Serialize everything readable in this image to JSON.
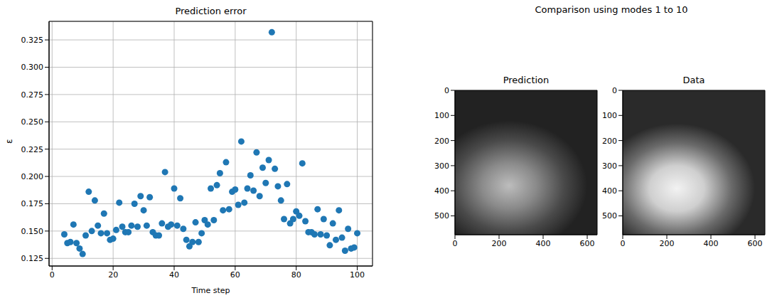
{
  "title": "Comparison using modes 1 to 10",
  "chart_data": [
    {
      "type": "scatter",
      "title": "Prediction error",
      "x_label": "Time step",
      "y_label": "ε",
      "color": "#1f77b4",
      "marker": "circle",
      "grid": true,
      "xlim": [
        -1,
        105
      ],
      "ylim": [
        0.118,
        0.342
      ],
      "xticks": [
        0,
        20,
        40,
        60,
        80,
        100
      ],
      "yticks": [
        0.125,
        {
          "value": 0.15,
          "label": "0.150"
        },
        0.175,
        {
          "value": 0.2,
          "label": "0.200"
        },
        0.225,
        {
          "value": 0.25,
          "label": "0.250"
        },
        0.275,
        {
          "value": 0.3,
          "label": "0.300"
        },
        0.325
      ],
      "x": [
        4,
        5,
        6,
        7,
        8,
        9,
        10,
        11,
        12,
        13,
        14,
        15,
        16,
        17,
        18,
        19,
        20,
        21,
        22,
        23,
        24,
        25,
        26,
        27,
        28,
        29,
        30,
        31,
        32,
        33,
        34,
        35,
        36,
        37,
        38,
        39,
        40,
        41,
        42,
        43,
        44,
        45,
        46,
        47,
        48,
        49,
        50,
        51,
        52,
        53,
        54,
        55,
        56,
        57,
        58,
        59,
        60,
        61,
        62,
        63,
        64,
        65,
        66,
        67,
        68,
        69,
        70,
        71,
        72,
        73,
        74,
        75,
        76,
        77,
        78,
        79,
        80,
        81,
        82,
        83,
        84,
        85,
        86,
        87,
        88,
        89,
        90,
        91,
        92,
        93,
        94,
        95,
        96,
        97,
        98,
        99,
        100
      ],
      "values": [
        0.147,
        0.139,
        0.14,
        0.156,
        0.139,
        0.134,
        0.129,
        0.146,
        0.186,
        0.15,
        0.178,
        0.155,
        0.148,
        0.166,
        0.148,
        0.142,
        0.143,
        0.151,
        0.176,
        0.154,
        0.149,
        0.149,
        0.155,
        0.175,
        0.154,
        0.182,
        0.169,
        0.155,
        0.181,
        0.149,
        0.146,
        0.146,
        0.157,
        0.204,
        0.154,
        0.156,
        0.189,
        0.155,
        0.18,
        0.152,
        0.142,
        0.136,
        0.14,
        0.158,
        0.14,
        0.148,
        0.16,
        0.156,
        0.189,
        0.16,
        0.192,
        0.203,
        0.169,
        0.213,
        0.17,
        0.186,
        0.188,
        0.174,
        0.232,
        0.176,
        0.189,
        0.201,
        0.187,
        0.222,
        0.182,
        0.208,
        0.194,
        0.215,
        0.332,
        0.207,
        0.191,
        0.178,
        0.161,
        0.193,
        0.157,
        0.161,
        0.168,
        0.164,
        0.212,
        0.159,
        0.149,
        0.149,
        0.147,
        0.17,
        0.147,
        0.161,
        0.146,
        0.137,
        0.157,
        0.142,
        0.169,
        0.144,
        0.132,
        0.152,
        0.134,
        0.135,
        0.148
      ]
    },
    {
      "type": "image",
      "title": "Prediction",
      "xlim": [
        0,
        645
      ],
      "ylim": [
        575,
        0
      ],
      "xticks": [
        0,
        200,
        400,
        600
      ],
      "yticks": [
        0,
        100,
        200,
        300,
        400,
        500
      ]
    },
    {
      "type": "image",
      "title": "Data",
      "xlim": [
        0,
        645
      ],
      "ylim": [
        575,
        0
      ],
      "xticks": [
        0,
        200,
        400,
        600
      ],
      "yticks": [
        0,
        100,
        200,
        300,
        400,
        500
      ]
    }
  ]
}
